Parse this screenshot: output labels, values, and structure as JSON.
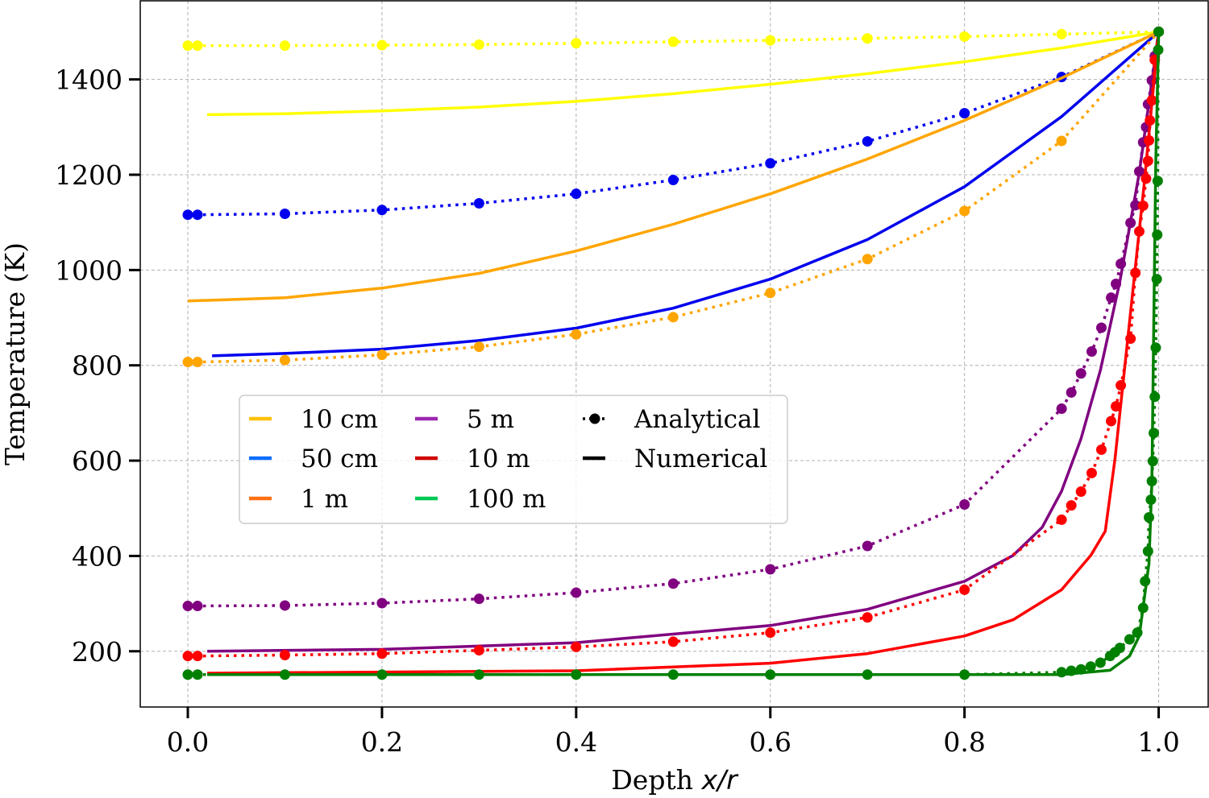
{
  "chart_data": {
    "type": "line",
    "title": "",
    "xlabel": "Depth ",
    "xlabel_italic": "x/r",
    "ylabel": "Temperature (K)",
    "xlim": [
      -0.049,
      1.051
    ],
    "ylim": [
      83,
      1565
    ],
    "xticks": [
      0.0,
      0.2,
      0.4,
      0.6,
      0.8,
      1.0
    ],
    "xtick_labels": [
      "0.0",
      "0.2",
      "0.4",
      "0.6",
      "0.8",
      "1.0"
    ],
    "yticks": [
      200,
      400,
      600,
      800,
      1000,
      1200,
      1400
    ],
    "ytick_labels": [
      "200",
      "400",
      "600",
      "800",
      "1000",
      "1200",
      "1400"
    ],
    "grid": true,
    "legend": {
      "placement": "center-left",
      "columns": [
        [
          {
            "label": "10 cm",
            "color": "#ffc107"
          },
          {
            "label": "50 cm",
            "color": "#0d6efd"
          },
          {
            "label": "1 m",
            "color": "#fd7014"
          }
        ],
        [
          {
            "label": "5 m",
            "color": "#9c27b0"
          },
          {
            "label": "10 m",
            "color": "#d00000"
          },
          {
            "label": "100 m",
            "color": "#00c853"
          }
        ],
        [
          {
            "label": "Analytical",
            "style": "dotted-marker",
            "color": "#000000"
          },
          {
            "label": "Numerical",
            "style": "solid",
            "color": "#000000"
          }
        ]
      ]
    },
    "series": [
      {
        "name": "10 cm",
        "color": "#ffff00",
        "analytical": {
          "x": [
            0.0,
            0.01,
            0.1,
            0.2,
            0.3,
            0.4,
            0.5,
            0.6,
            0.7,
            0.8,
            0.9,
            1.0
          ],
          "y": [
            1471,
            1471,
            1471,
            1472,
            1473,
            1476,
            1479,
            1482,
            1486,
            1490,
            1495,
            1500
          ]
        },
        "numerical": {
          "x": [
            0.02,
            0.1,
            0.2,
            0.3,
            0.4,
            0.5,
            0.6,
            0.7,
            0.8,
            0.9,
            1.0
          ],
          "y": [
            1326,
            1328,
            1334,
            1342,
            1354,
            1370,
            1390,
            1412,
            1437,
            1466,
            1500
          ]
        }
      },
      {
        "name": "50 cm",
        "color": "#0000ee",
        "analytical": {
          "x": [
            0.0,
            0.01,
            0.1,
            0.2,
            0.3,
            0.4,
            0.5,
            0.6,
            0.7,
            0.8,
            0.9,
            1.0
          ],
          "y": [
            1116,
            1116,
            1118,
            1126,
            1140,
            1160,
            1189,
            1224,
            1270,
            1329,
            1405,
            1500
          ]
        },
        "numerical": {
          "x": [
            0.025,
            0.1,
            0.2,
            0.3,
            0.4,
            0.5,
            0.6,
            0.7,
            0.8,
            0.9,
            1.0
          ],
          "y": [
            820,
            825,
            834,
            852,
            878,
            920,
            981,
            1064,
            1175,
            1322,
            1500
          ]
        }
      },
      {
        "name": "1 m",
        "color": "#ffa500",
        "analytical": {
          "x": [
            0.0,
            0.01,
            0.1,
            0.2,
            0.3,
            0.4,
            0.5,
            0.6,
            0.7,
            0.8,
            0.9,
            1.0
          ],
          "y": [
            807,
            807,
            811,
            822,
            839,
            865,
            901,
            952,
            1023,
            1124,
            1271,
            1500
          ]
        },
        "numerical": {
          "x": [
            0.0,
            0.1,
            0.2,
            0.3,
            0.4,
            0.5,
            0.6,
            0.7,
            0.8,
            0.9,
            1.0
          ],
          "y": [
            935,
            942,
            962,
            993,
            1040,
            1096,
            1160,
            1233,
            1314,
            1403,
            1500
          ]
        }
      },
      {
        "name": "5 m",
        "color": "#800080",
        "analytical": {
          "x": [
            0.0,
            0.01,
            0.1,
            0.2,
            0.3,
            0.4,
            0.5,
            0.6,
            0.7,
            0.8,
            0.9,
            0.91,
            0.92,
            0.931,
            0.941,
            0.951,
            0.956,
            0.961,
            0.971,
            0.976,
            0.98,
            0.984,
            0.987,
            0.989,
            0.993,
            0.996,
            1.0
          ],
          "y": [
            295,
            295,
            296,
            301,
            310,
            323,
            342,
            372,
            421,
            508,
            709,
            743,
            783,
            829,
            879,
            942,
            971,
            1013,
            1099,
            1136,
            1207,
            1268,
            1300,
            1348,
            1398,
            1449,
            1500
          ]
        },
        "numerical": {
          "x": [
            0.02,
            0.2,
            0.4,
            0.6,
            0.7,
            0.8,
            0.85,
            0.88,
            0.9,
            0.92,
            0.94,
            0.96,
            0.98,
            1.0
          ],
          "y": [
            200,
            204,
            218,
            254,
            288,
            347,
            401,
            460,
            536,
            646,
            790,
            976,
            1204,
            1500
          ]
        }
      },
      {
        "name": "10 m",
        "color": "#ff0000",
        "analytical": {
          "x": [
            0.0,
            0.01,
            0.1,
            0.2,
            0.3,
            0.4,
            0.5,
            0.6,
            0.7,
            0.8,
            0.9,
            0.91,
            0.92,
            0.931,
            0.941,
            0.951,
            0.956,
            0.961,
            0.971,
            0.976,
            0.98,
            0.984,
            0.987,
            0.989,
            0.99,
            0.991,
            0.993,
            0.996,
            1.0
          ],
          "y": [
            190,
            190,
            192,
            195,
            202,
            209,
            220,
            239,
            271,
            329,
            476,
            506,
            535,
            574,
            623,
            683,
            714,
            758,
            856,
            994,
            1081,
            1135,
            1192,
            1229,
            1272,
            1314,
            1356,
            1441,
            1500
          ]
        },
        "numerical": {
          "x": [
            0.02,
            0.4,
            0.6,
            0.7,
            0.8,
            0.85,
            0.9,
            0.93,
            0.945,
            0.955,
            0.97,
            0.985,
            1.0
          ],
          "y": [
            154,
            159,
            175,
            195,
            232,
            266,
            329,
            401,
            452,
            604,
            891,
            1179,
            1500
          ]
        }
      },
      {
        "name": "100 m",
        "color": "#008000",
        "analytical": {
          "x": [
            0.0,
            0.01,
            0.1,
            0.2,
            0.3,
            0.4,
            0.5,
            0.6,
            0.7,
            0.8,
            0.9,
            0.91,
            0.92,
            0.93,
            0.94,
            0.95,
            0.955,
            0.96,
            0.97,
            0.978,
            0.984,
            0.986,
            0.989,
            0.99,
            0.992,
            0.993,
            0.994,
            0.995,
            0.996,
            0.997,
            0.998,
            0.9985,
            0.999,
            0.9995,
            1.0,
            1.0
          ],
          "y": [
            151,
            151,
            151,
            151,
            151,
            151,
            151,
            151,
            151,
            151,
            156,
            159,
            162,
            168,
            176,
            190,
            198,
            207,
            225,
            239,
            291,
            347,
            410,
            481,
            518,
            557,
            599,
            658,
            734,
            837,
            981,
            1074,
            1187,
            1462,
            1500,
            1500
          ]
        },
        "numerical": {
          "x": [
            0.02,
            0.2,
            0.4,
            0.6,
            0.8,
            0.9,
            0.95,
            0.97,
            0.98,
            0.99,
            0.993,
            0.995,
            0.997,
            1.0
          ],
          "y": [
            151,
            151,
            151,
            151,
            151,
            151,
            160,
            190,
            232,
            384,
            553,
            891,
            1229,
            1500
          ]
        }
      }
    ]
  }
}
